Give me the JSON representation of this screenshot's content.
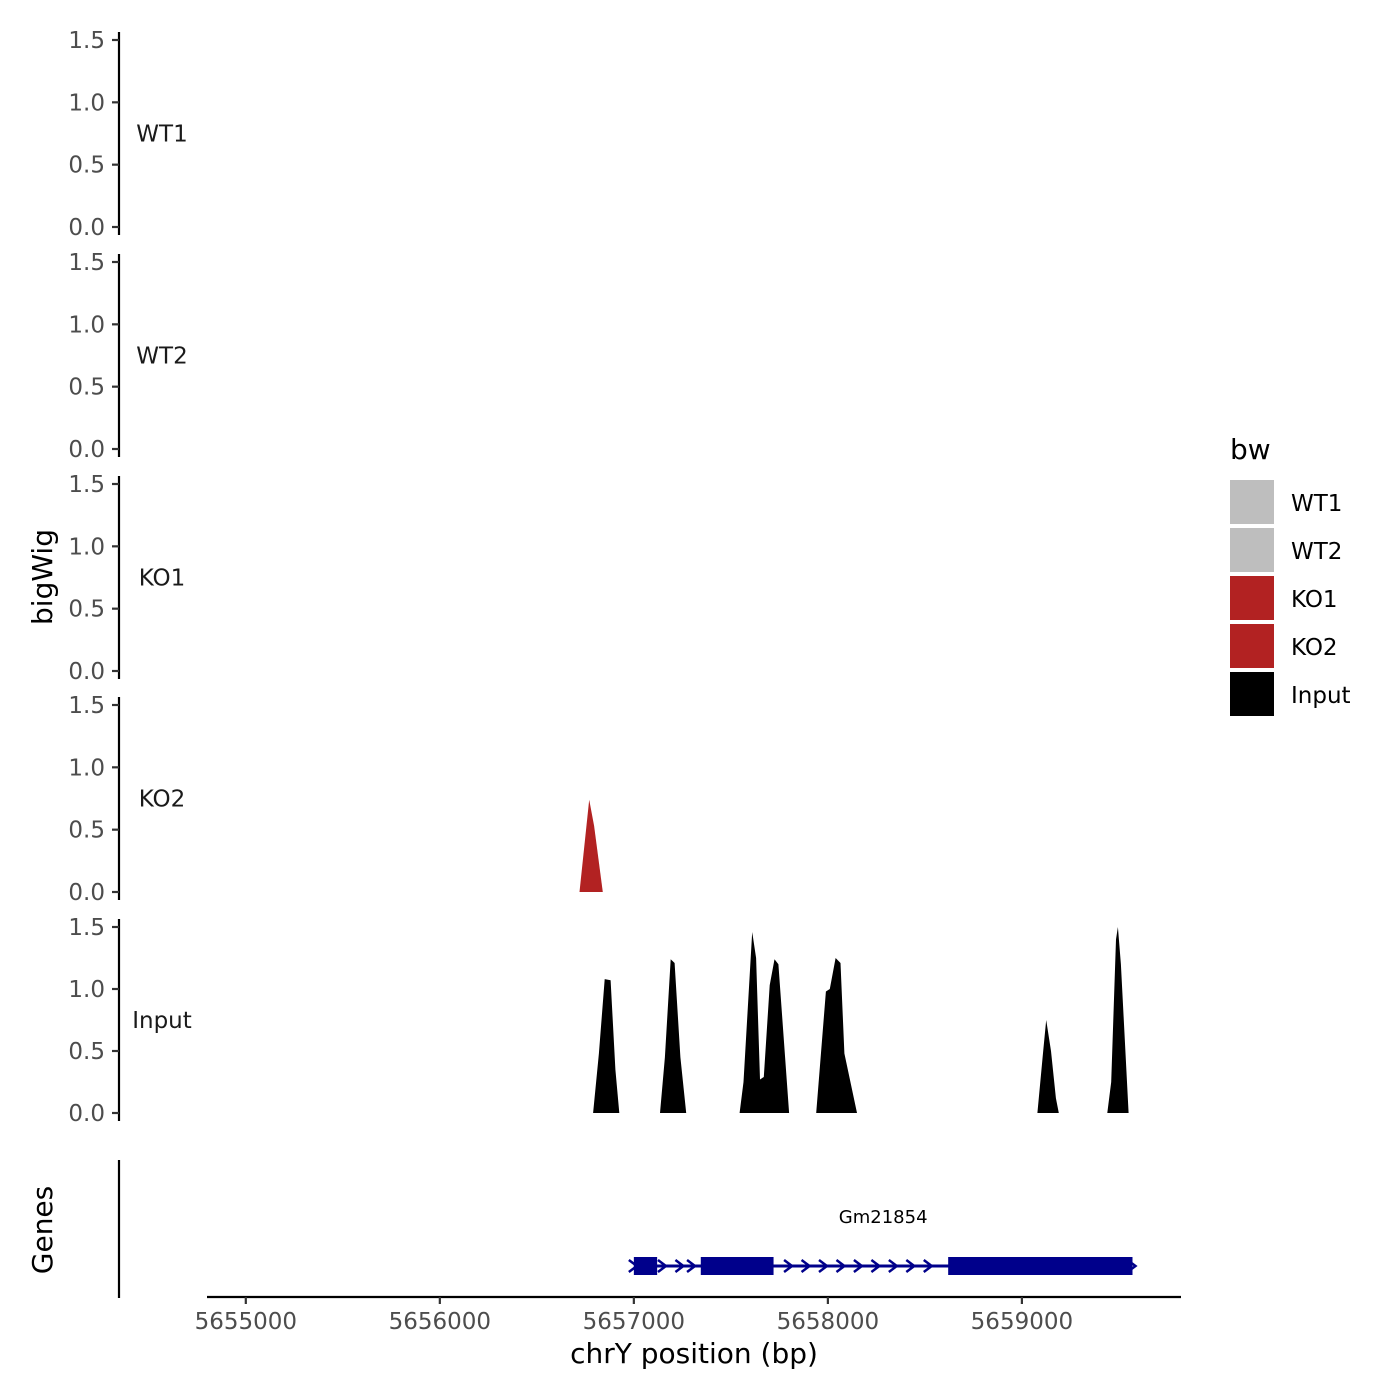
{
  "chart_data": {
    "type": "area",
    "y_axis_title": "bigWig",
    "x_axis_title": "chrY position (bp)",
    "genes_axis_title": "Genes",
    "x_ticks": [
      5655000,
      5656000,
      5657000,
      5658000,
      5659000
    ],
    "x_tick_labels": [
      "5655000",
      "5656000",
      "5657000",
      "5658000",
      "5659000"
    ],
    "xlim": [
      5654800,
      5659820
    ],
    "ylim": [
      0,
      1.5
    ],
    "y_ticks": [
      0,
      0.5,
      1,
      1.5
    ],
    "y_tick_labels": [
      "0.0",
      "0.5",
      "1.0",
      "1.5"
    ],
    "legend": {
      "title": "bw",
      "position": "right",
      "entries": [
        {
          "label": "WT1",
          "color": "#bebebe"
        },
        {
          "label": "WT2",
          "color": "#bebebe"
        },
        {
          "label": "KO1",
          "color": "#b22222"
        },
        {
          "label": "KO2",
          "color": "#b22222"
        },
        {
          "label": "Input",
          "color": "#000000"
        }
      ]
    },
    "tracks": [
      {
        "name": "WT1",
        "color": "#bebebe",
        "points": []
      },
      {
        "name": "WT2",
        "color": "#bebebe",
        "points": []
      },
      {
        "name": "KO1",
        "color": "#b22222",
        "points": []
      },
      {
        "name": "KO2",
        "color": "#b22222",
        "points": [
          [
            5656720,
            0.0
          ],
          [
            5656770,
            0.74
          ],
          [
            5656795,
            0.53
          ],
          [
            5656840,
            0.0
          ]
        ]
      },
      {
        "name": "Input",
        "color": "#000000",
        "points": [
          [
            5656790,
            0.0
          ],
          [
            5656820,
            0.48
          ],
          [
            5656850,
            1.08
          ],
          [
            5656880,
            1.07
          ],
          [
            5656905,
            0.35
          ],
          [
            5656925,
            0.0
          ],
          [
            5657135,
            0.0
          ],
          [
            5657160,
            0.45
          ],
          [
            5657190,
            1.24
          ],
          [
            5657210,
            1.21
          ],
          [
            5657240,
            0.45
          ],
          [
            5657270,
            0.0
          ],
          [
            5657545,
            0.0
          ],
          [
            5657565,
            0.25
          ],
          [
            5657610,
            1.46
          ],
          [
            5657630,
            1.25
          ],
          [
            5657650,
            0.27
          ],
          [
            5657670,
            0.29
          ],
          [
            5657700,
            1.03
          ],
          [
            5657725,
            1.24
          ],
          [
            5657745,
            1.2
          ],
          [
            5657800,
            0.0
          ],
          [
            5657940,
            0.0
          ],
          [
            5657990,
            0.98
          ],
          [
            5658010,
            1.0
          ],
          [
            5658040,
            1.25
          ],
          [
            5658065,
            1.21
          ],
          [
            5658085,
            0.48
          ],
          [
            5658150,
            0.0
          ],
          [
            5659080,
            0.0
          ],
          [
            5659110,
            0.5
          ],
          [
            5659125,
            0.75
          ],
          [
            5659150,
            0.5
          ],
          [
            5659175,
            0.12
          ],
          [
            5659190,
            0.0
          ],
          [
            5659440,
            0.0
          ],
          [
            5659460,
            0.25
          ],
          [
            5659485,
            1.4
          ],
          [
            5659495,
            1.5
          ],
          [
            5659510,
            1.2
          ],
          [
            5659550,
            0.0
          ]
        ]
      }
    ],
    "genes": [
      {
        "name": "Gm21854",
        "start": 5657000,
        "end": 5659570,
        "strand": "+",
        "color": "#00008b",
        "exons": [
          [
            5657000,
            5657120
          ],
          [
            5657345,
            5657720
          ],
          [
            5658620,
            5659570
          ]
        ],
        "arrows": [
          5657000,
          5657150,
          5657240,
          5657300,
          5657800,
          5657890,
          5657980,
          5658070,
          5658160,
          5658250,
          5658340,
          5658430,
          5658520,
          5659570
        ]
      }
    ]
  }
}
